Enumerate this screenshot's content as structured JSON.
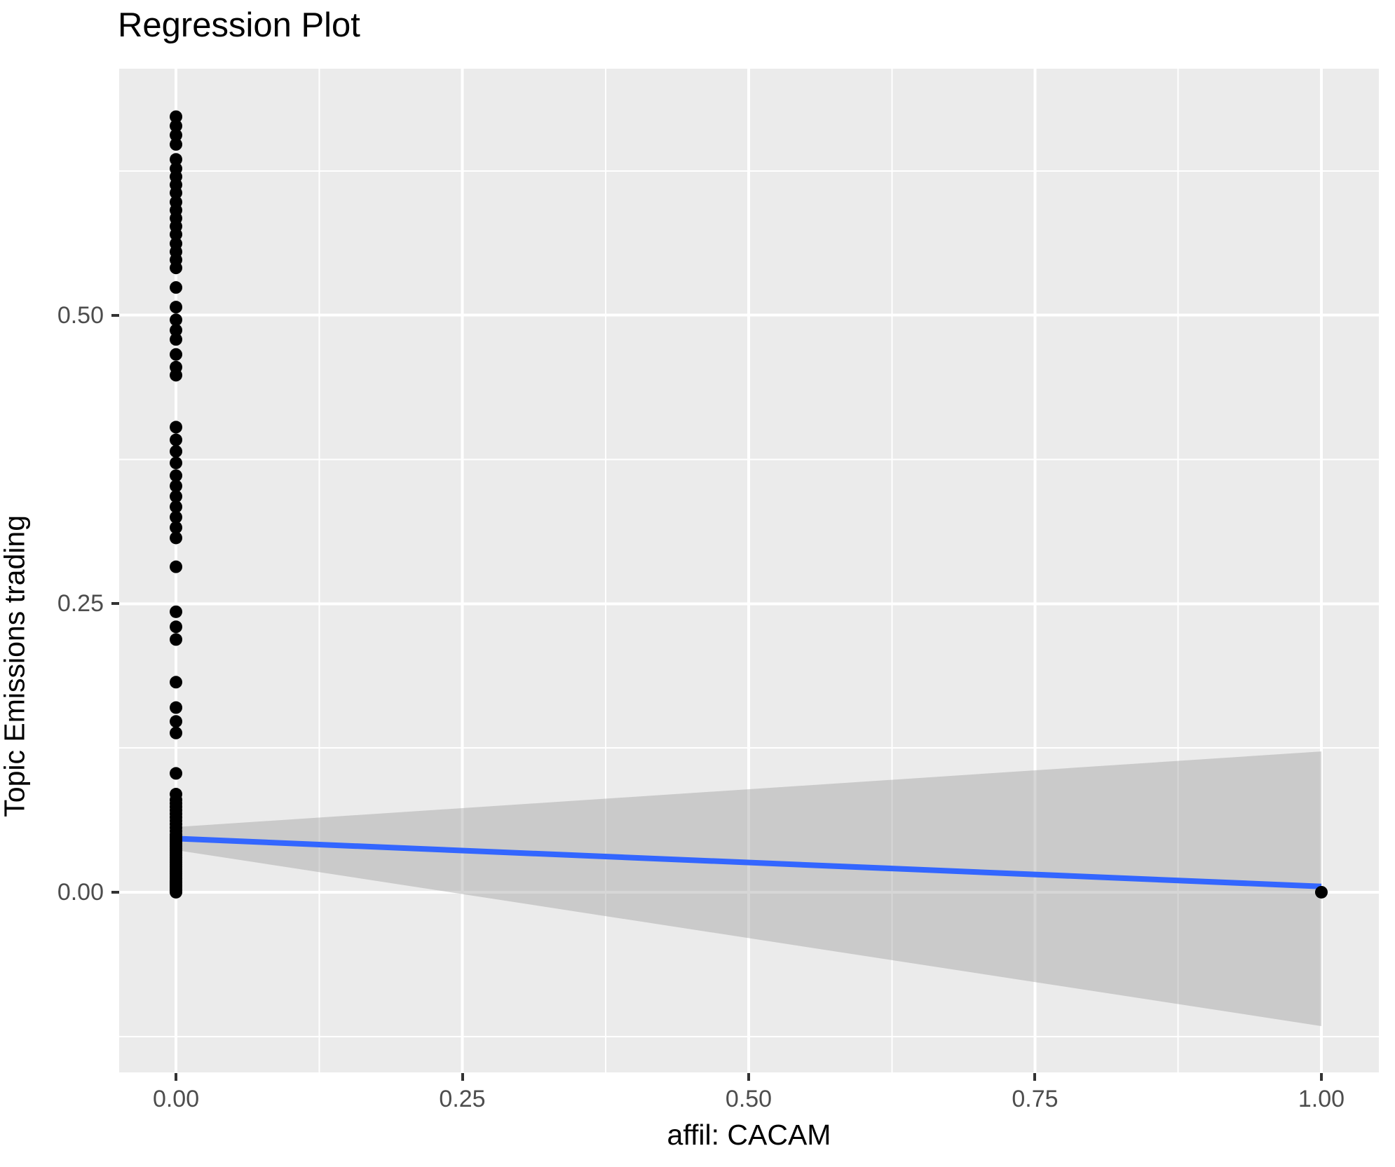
{
  "title": "Regression Plot",
  "colors": {
    "panel_background": "#EBEBEB",
    "grid": "#FFFFFF",
    "point": "#000000",
    "regression_line": "#3366FF",
    "confidence_band": "#999999",
    "confidence_band_opacity": 0.4,
    "tick_label": "#4D4D4D",
    "tick_mark": "#333333",
    "text": "#000000"
  },
  "chart_data": {
    "type": "scatter",
    "title": "Regression Plot",
    "xlabel": "affil: CACAM",
    "ylabel": "Topic Emissions trading",
    "xlim": [
      -0.0496,
      1.0502
    ],
    "ylim": [
      -0.1561,
      0.7136
    ],
    "grid": "on",
    "legend": "none",
    "x_ticks": [
      {
        "value": 0.0,
        "label": "0.00"
      },
      {
        "value": 0.25,
        "label": "0.25"
      },
      {
        "value": 0.5,
        "label": "0.50"
      },
      {
        "value": 0.75,
        "label": "0.75"
      },
      {
        "value": 1.0,
        "label": "1.00"
      }
    ],
    "y_ticks": [
      {
        "value": 0.0,
        "label": "0.00"
      },
      {
        "value": 0.25,
        "label": "0.25"
      },
      {
        "value": 0.5,
        "label": "0.50"
      }
    ],
    "x_minor": [
      0.125,
      0.375,
      0.625,
      0.875
    ],
    "y_minor": [
      -0.125,
      0.125,
      0.375,
      0.625
    ],
    "points": [
      {
        "x": 0,
        "ys": [
          0.672,
          0.664,
          0.656,
          0.648,
          0.635,
          0.627,
          0.62,
          0.613,
          0.606,
          0.598,
          0.591,
          0.584,
          0.577,
          0.57,
          0.562,
          0.555,
          0.548,
          0.541,
          0.524,
          0.507,
          0.496,
          0.487,
          0.479,
          0.466,
          0.455,
          0.448,
          0.403,
          0.392,
          0.382,
          0.372,
          0.361,
          0.352,
          0.343,
          0.334,
          0.325,
          0.316,
          0.307,
          0.282,
          0.243,
          0.23,
          0.219,
          0.182,
          0.16,
          0.148,
          0.138,
          0.103,
          0.085,
          0.08,
          0.077,
          0.074,
          0.071,
          0.068,
          0.065,
          0.062,
          0.059,
          0.056,
          0.053,
          0.05,
          0.048,
          0.046,
          0.044,
          0.042,
          0.04,
          0.038,
          0.036,
          0.034,
          0.032,
          0.03,
          0.028,
          0.026,
          0.024,
          0.022,
          0.02,
          0.018,
          0.016,
          0.014,
          0.012,
          0.01,
          0.009,
          0.008,
          0.007,
          0.006,
          0.005,
          0.004,
          0.003,
          0.002,
          0.001,
          0.0
        ]
      },
      {
        "x": 1,
        "ys": [
          0.0
        ]
      }
    ],
    "regression_line": {
      "x": [
        0,
        1
      ],
      "y": [
        0.0465,
        0.005
      ]
    },
    "confidence_band": {
      "x": [
        0,
        1
      ],
      "upper": [
        0.0565,
        0.122
      ],
      "lower": [
        0.0365,
        -0.116
      ]
    }
  }
}
